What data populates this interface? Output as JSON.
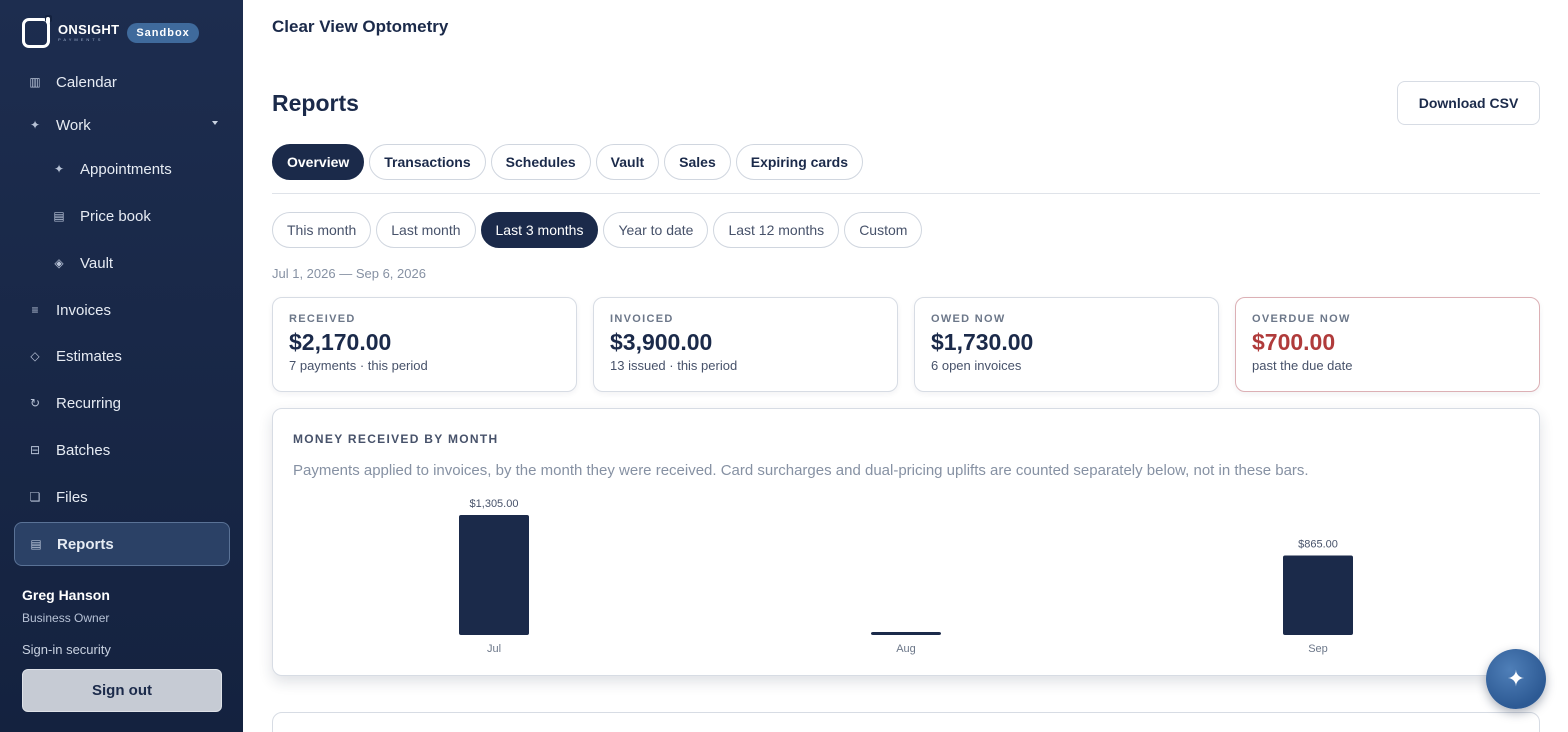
{
  "brand": {
    "name": "ONSIGHT",
    "sub": "PAYMENTS",
    "badge": "Sandbox"
  },
  "sidebar": {
    "items": [
      {
        "label": "Calendar",
        "icon": "calendar-icon",
        "glyph": "▥"
      },
      {
        "label": "Work",
        "icon": "sparkle-icon",
        "glyph": "✦"
      },
      {
        "label": "Appointments",
        "icon": "sparkle-icon",
        "glyph": "✦"
      },
      {
        "label": "Price book",
        "icon": "list-icon",
        "glyph": "▤"
      },
      {
        "label": "Vault",
        "icon": "diamond-icon",
        "glyph": "◈"
      },
      {
        "label": "Invoices",
        "icon": "lines-icon",
        "glyph": "≡"
      },
      {
        "label": "Estimates",
        "icon": "diamond-outline-icon",
        "glyph": "◇"
      },
      {
        "label": "Recurring",
        "icon": "refresh-icon",
        "glyph": "↻"
      },
      {
        "label": "Batches",
        "icon": "batch-icon",
        "glyph": "⊟"
      },
      {
        "label": "Files",
        "icon": "file-icon",
        "glyph": "❏"
      },
      {
        "label": "Reports",
        "icon": "reports-icon",
        "glyph": "▤"
      }
    ],
    "active": "Reports"
  },
  "user": {
    "name": "Greg Hanson",
    "role": "Business Owner",
    "security_link": "Sign-in security",
    "signout_label": "Sign out"
  },
  "header": {
    "business": "Clear View Optometry",
    "title": "Reports",
    "download_label": "Download CSV"
  },
  "tabs": [
    "Overview",
    "Transactions",
    "Schedules",
    "Vault",
    "Sales",
    "Expiring cards"
  ],
  "active_tab": "Overview",
  "ranges": [
    "This month",
    "Last month",
    "Last 3 months",
    "Year to date",
    "Last 12 months",
    "Custom"
  ],
  "active_range": "Last 3 months",
  "date_range": "Jul 1, 2026 — Sep 6, 2026",
  "cards": [
    {
      "label": "RECEIVED",
      "value": "$2,170.00",
      "note": "7 payments · this period"
    },
    {
      "label": "INVOICED",
      "value": "$3,900.00",
      "note": "13 issued · this period"
    },
    {
      "label": "OWED NOW",
      "value": "$1,730.00",
      "note": "6 open invoices"
    },
    {
      "label": "OVERDUE NOW",
      "value": "$700.00",
      "note": "past the due date"
    }
  ],
  "chart": {
    "title": "MONEY RECEIVED BY MONTH",
    "description": "Payments applied to invoices, by the month they were received. Card surcharges and dual-pricing uplifts are counted separately below, not in these bars."
  },
  "chart_data": {
    "type": "bar",
    "categories": [
      "Jul",
      "Aug",
      "Sep"
    ],
    "values": [
      1305,
      0,
      865
    ],
    "value_labels": [
      "$1,305.00",
      "",
      "$865.00"
    ],
    "title": "MONEY RECEIVED BY MONTH",
    "xlabel": "",
    "ylabel": "",
    "bar_color": "#1b2a4a",
    "grid": false
  },
  "colors": {
    "navy": "#1b2a4a",
    "alert": "#b03b3b",
    "sidebar": "#1d2d4f"
  }
}
